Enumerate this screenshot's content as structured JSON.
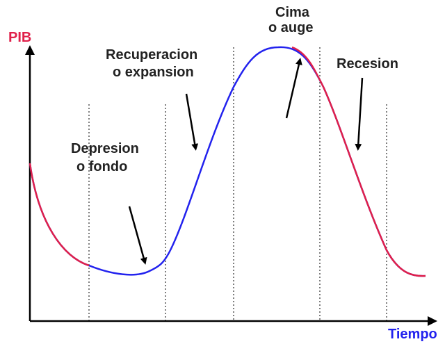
{
  "axes": {
    "y_label": "PIB",
    "x_label": "Tiempo"
  },
  "labels": [
    {
      "lines": [
        "Cima",
        "o auge"
      ]
    },
    {
      "lines": [
        "Recuperacion",
        "o expansion"
      ]
    },
    {
      "lines": [
        "Depresion",
        "o fondo"
      ]
    },
    {
      "lines": [
        "Recesion"
      ]
    }
  ]
}
